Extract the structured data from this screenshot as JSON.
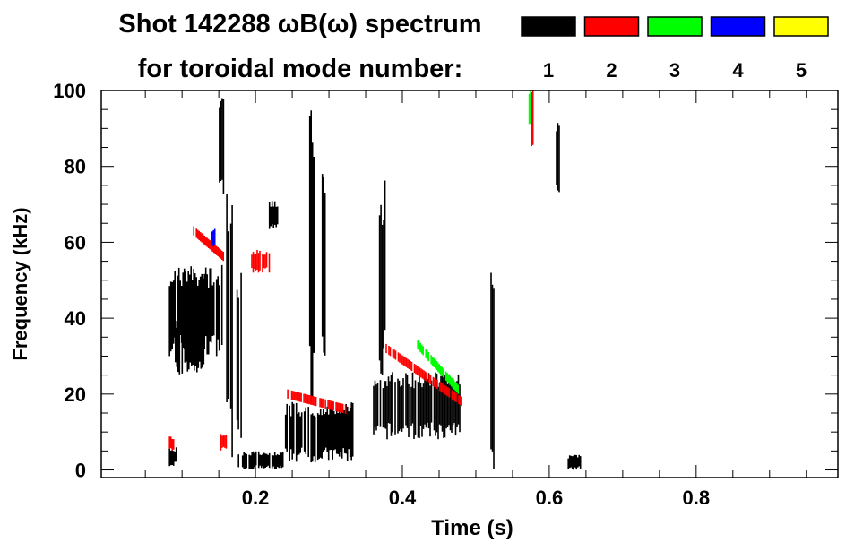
{
  "chart_data": {
    "type": "heatmap",
    "title": "Shot 142288 ωB(ω) spectrum",
    "subtitle": "for toroidal mode number:",
    "xlabel": "Time (s)",
    "ylabel": "Frequency (kHz)",
    "xlim": [
      -0.01,
      0.993
    ],
    "ylim": [
      -2,
      100
    ],
    "xticks": [
      0.2,
      0.4,
      0.6,
      0.8
    ],
    "xtick_labels": [
      "0.2",
      "0.4",
      "0.6",
      "0.8"
    ],
    "yticks": [
      0,
      20,
      40,
      60,
      80,
      100
    ],
    "ytick_labels": [
      "0",
      "20",
      "40",
      "60",
      "80",
      "100"
    ],
    "legend": [
      {
        "label": "1",
        "color": "#000000"
      },
      {
        "label": "2",
        "color": "#ff0000"
      },
      {
        "label": "3",
        "color": "#00ff00"
      },
      {
        "label": "4",
        "color": "#0000ff"
      },
      {
        "label": "5",
        "color": "#ffff00"
      }
    ],
    "legend_placement": "top-right",
    "regions": [
      {
        "t": [
          0.082,
          0.157
        ],
        "f": [
          30,
          54
        ],
        "mode": 1
      },
      {
        "t": [
          0.09,
          0.13
        ],
        "f": [
          25,
          40
        ],
        "mode": 1
      },
      {
        "t": [
          0.082,
          0.092
        ],
        "f": [
          1,
          6
        ],
        "mode": 1
      },
      {
        "t": [
          0.176,
          0.237
        ],
        "f": [
          0,
          5
        ],
        "mode": 1
      },
      {
        "t": [
          0.15,
          0.156
        ],
        "f": [
          70,
          98
        ],
        "mode": 1
      },
      {
        "t": [
          0.16,
          0.168
        ],
        "f": [
          1,
          76
        ],
        "mode": 1
      },
      {
        "t": [
          0.174,
          0.18
        ],
        "f": [
          0,
          55
        ],
        "mode": 1
      },
      {
        "t": [
          0.218,
          0.23
        ],
        "f": [
          63,
          71
        ],
        "mode": 1
      },
      {
        "t": [
          0.24,
          0.334
        ],
        "f": [
          2,
          18
        ],
        "mode": 1
      },
      {
        "t": [
          0.273,
          0.28
        ],
        "f": [
          15,
          99
        ],
        "mode": 1
      },
      {
        "t": [
          0.29,
          0.296
        ],
        "f": [
          20,
          90
        ],
        "mode": 1
      },
      {
        "t": [
          0.36,
          0.48
        ],
        "f": [
          8,
          26
        ],
        "mode": 1
      },
      {
        "t": [
          0.368,
          0.376
        ],
        "f": [
          25,
          77
        ],
        "mode": 1
      },
      {
        "t": [
          0.518,
          0.524
        ],
        "f": [
          0,
          53
        ],
        "mode": 1
      },
      {
        "t": [
          0.607,
          0.613
        ],
        "f": [
          73,
          92
        ],
        "mode": 1
      },
      {
        "t": [
          0.625,
          0.642
        ],
        "f": [
          0,
          4
        ],
        "mode": 1
      },
      {
        "t": [
          0.115,
          0.157
        ],
        "f": [
          56,
          63
        ],
        "mode": 2
      },
      {
        "t": [
          0.194,
          0.218
        ],
        "f": [
          52,
          58
        ],
        "mode": 2
      },
      {
        "t": [
          0.243,
          0.322
        ],
        "f": [
          16,
          20
        ],
        "mode": 2
      },
      {
        "t": [
          0.377,
          0.48
        ],
        "f": [
          18,
          32
        ],
        "mode": 2
      },
      {
        "t": [
          0.15,
          0.16
        ],
        "f": [
          5,
          10
        ],
        "mode": 2
      },
      {
        "t": [
          0.082,
          0.088
        ],
        "f": [
          5,
          9
        ],
        "mode": 2
      },
      {
        "t": [
          0.575,
          0.58
        ],
        "f": [
          82,
          100
        ],
        "mode": 2
      },
      {
        "t": [
          0.42,
          0.476
        ],
        "f": [
          21,
          33
        ],
        "mode": 3
      },
      {
        "t": [
          0.57,
          0.574
        ],
        "f": [
          90,
          100
        ],
        "mode": 3
      },
      {
        "t": [
          0.14,
          0.145
        ],
        "f": [
          58,
          64
        ],
        "mode": 4
      }
    ]
  }
}
